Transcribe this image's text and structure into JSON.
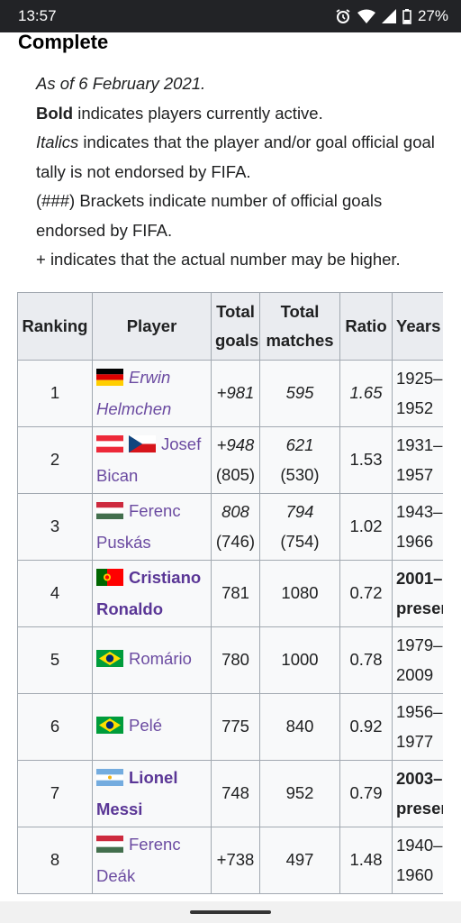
{
  "status_bar": {
    "time": "13:57",
    "battery": "27%"
  },
  "heading": "Complete",
  "notes": {
    "as_of": "As of 6 February 2021.",
    "bold_word": "Bold",
    "bold_rest": " indicates players currently active.",
    "italics_word": "Italics",
    "italics_rest": " indicates that the player and/or goal official goal tally is not endorsed by FIFA.",
    "brackets": "(###) Brackets indicate number of official goals endorsed by FIFA.",
    "plus": "+ indicates that the actual number may be higher."
  },
  "table": {
    "headers": [
      "Ranking",
      "Player",
      "Total goals",
      "Total matches",
      "Ratio",
      "Years"
    ],
    "rows": [
      {
        "rank": "1",
        "flags": [
          "germany"
        ],
        "first": "Erwin",
        "last": "Helmchen",
        "goals": "+981",
        "goals_official": "",
        "matches": "595",
        "matches_official": "",
        "ratio": "1.65",
        "years_from": "1925–",
        "years_to": "1952"
      },
      {
        "rank": "2",
        "flags": [
          "austria",
          "czech"
        ],
        "first": "",
        "last": "Josef Bican",
        "goals": "+948",
        "goals_official": "(805)",
        "matches": "621",
        "matches_official": "(530)",
        "ratio": "1.53",
        "years_from": "1931–",
        "years_to": "1957"
      },
      {
        "rank": "3",
        "flags": [
          "hungary"
        ],
        "first": "Ferenc",
        "last": "Puskás",
        "goals": "808",
        "goals_official": "(746)",
        "matches": "794",
        "matches_official": "(754)",
        "ratio": "1.02",
        "years_from": "1943–",
        "years_to": "1966"
      },
      {
        "rank": "4",
        "flags": [
          "portugal"
        ],
        "first": "Cristiano",
        "last": "Ronaldo",
        "goals": "781",
        "goals_official": "",
        "matches": "1080",
        "matches_official": "",
        "ratio": "0.72",
        "years_from": "2001–",
        "years_to": "present"
      },
      {
        "rank": "5",
        "flags": [
          "brazil"
        ],
        "first": "Romário",
        "last": "",
        "goals": "780",
        "goals_official": "",
        "matches": "1000",
        "matches_official": "",
        "ratio": "0.78",
        "years_from": "1979–",
        "years_to": "2009"
      },
      {
        "rank": "6",
        "flags": [
          "brazil"
        ],
        "first": "Pelé",
        "last": "",
        "goals": "775",
        "goals_official": "",
        "matches": "840",
        "matches_official": "",
        "ratio": "0.92",
        "years_from": "1956–",
        "years_to": "1977"
      },
      {
        "rank": "7",
        "flags": [
          "argentina"
        ],
        "first": "Lionel",
        "last": "Messi",
        "goals": "748",
        "goals_official": "",
        "matches": "952",
        "matches_official": "",
        "ratio": "0.79",
        "years_from": "2003–",
        "years_to": "present"
      },
      {
        "rank": "8",
        "flags": [
          "hungary"
        ],
        "first": "Ferenc",
        "last": "Deák",
        "goals": "+738",
        "goals_official": "",
        "matches": "497",
        "matches_official": "",
        "ratio": "1.48",
        "years_from": "1940–",
        "years_to": "1960"
      }
    ]
  },
  "colors": {
    "link": "#6b4ba1",
    "header_bg": "#eaecf0",
    "cell_bg": "#f8f9fa",
    "border": "#a2a9b1",
    "status_bar": "#222326"
  }
}
